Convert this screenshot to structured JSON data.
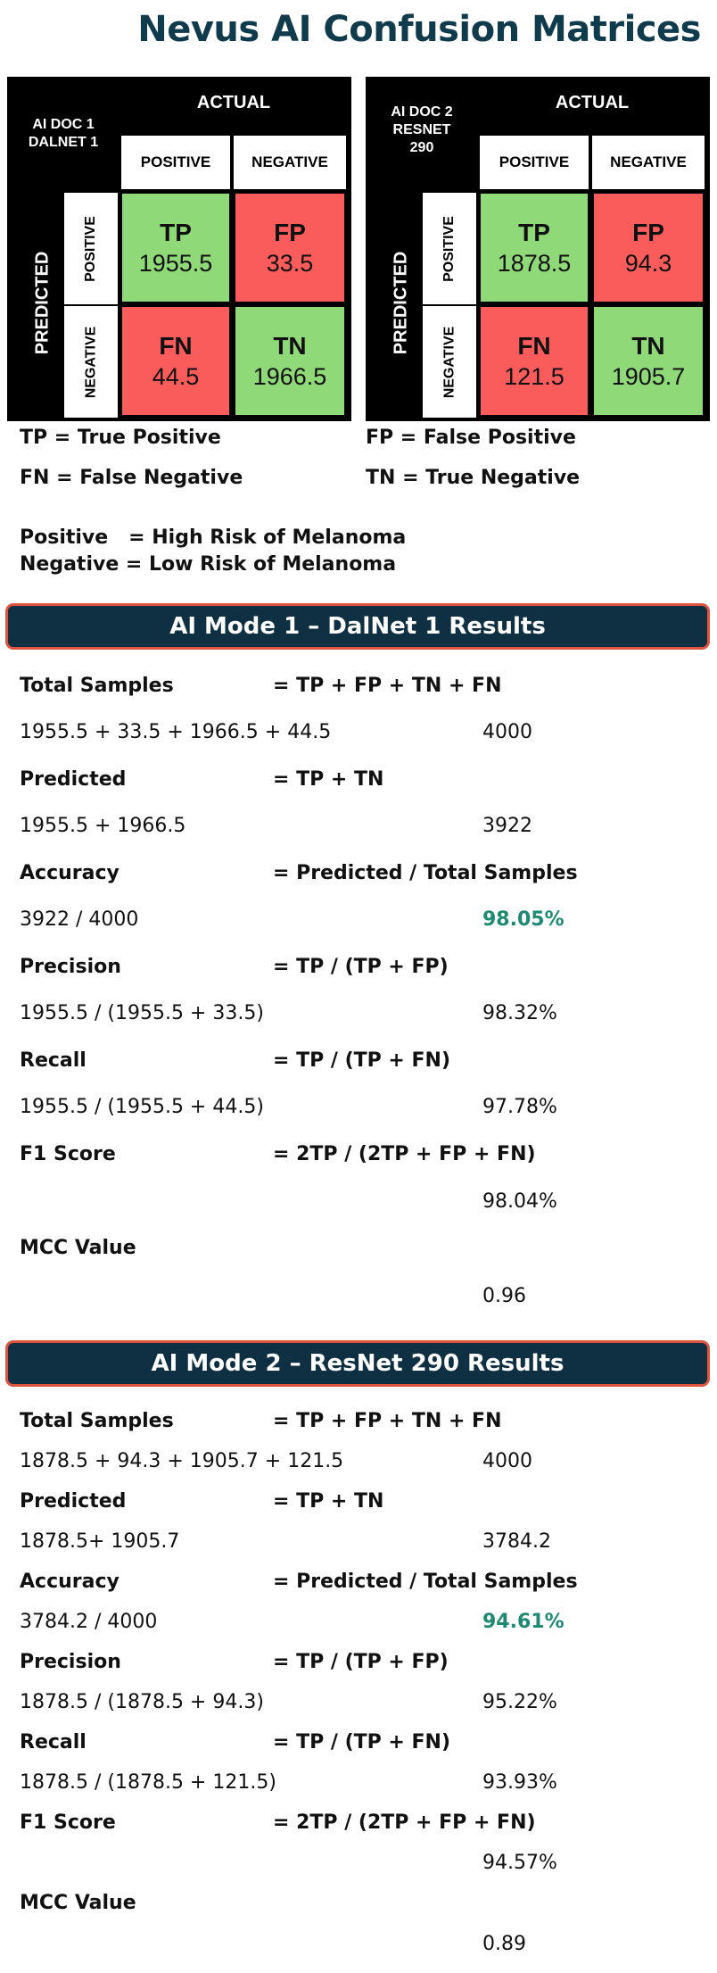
{
  "page_title": "Nevus AI Confusion Matrices",
  "matrices": [
    {
      "model_label_line1": "AI DOC 1",
      "model_label_line2": "DALNET 1",
      "model_label_line3": "",
      "actual": "ACTUAL",
      "predicted": "PREDICTED",
      "col_positive": "POSITIVE",
      "col_negative": "NEGATIVE",
      "row_positive": "POSITIVE",
      "row_negative": "NEGATIVE",
      "tp": {
        "abbr": "TP",
        "value": "1955.5"
      },
      "fp": {
        "abbr": "FP",
        "value": "33.5"
      },
      "fn": {
        "abbr": "FN",
        "value": "44.5"
      },
      "tn": {
        "abbr": "TN",
        "value": "1966.5"
      }
    },
    {
      "model_label_line1": "AI DOC 2",
      "model_label_line2": "RESNET",
      "model_label_line3": "290",
      "actual": "ACTUAL",
      "predicted": "PREDICTED",
      "col_positive": "POSITIVE",
      "col_negative": "NEGATIVE",
      "row_positive": "POSITIVE",
      "row_negative": "NEGATIVE",
      "tp": {
        "abbr": "TP",
        "value": "1878.5"
      },
      "fp": {
        "abbr": "FP",
        "value": "94.3"
      },
      "fn": {
        "abbr": "FN",
        "value": "121.5"
      },
      "tn": {
        "abbr": "TN",
        "value": "1905.7"
      }
    }
  ],
  "legend": {
    "tp": "TP = True Positive",
    "fp": "FP = False Positive",
    "fn": "FN = False Negative",
    "tn": "TN = True Negative",
    "positive": "Positive   = High Risk of Melanoma",
    "negative": "Negative = Low Risk of Melanoma"
  },
  "sections": [
    {
      "title": "AI Mode 1 – DalNet 1 Results",
      "metrics": [
        {
          "name": "Total Samples",
          "formula": "= TP + FP + TN + FN",
          "calc": "1955.5 + 33.5 + 1966.5 + 44.5",
          "result": "4000"
        },
        {
          "name": "Predicted",
          "formula": "= TP + TN",
          "calc": "1955.5 + 1966.5",
          "result": "3922"
        },
        {
          "name": "Accuracy",
          "formula": "= Predicted / Total Samples",
          "calc": "3922 / 4000",
          "result": "98.05%"
        },
        {
          "name": "Precision",
          "formula": "= TP / (TP + FP)",
          "calc": "1955.5 / (1955.5 + 33.5)",
          "result": "98.32%"
        },
        {
          "name": "Recall",
          "formula": "= TP / (TP + FN)",
          "calc": "1955.5 / (1955.5 + 44.5)",
          "result": "97.78%"
        },
        {
          "name": "F1 Score",
          "formula": "= 2TP / (2TP + FP + FN)",
          "calc": "",
          "result": "98.04%"
        },
        {
          "name": "MCC Value",
          "formula": "",
          "calc": "",
          "result": "0.96"
        }
      ]
    },
    {
      "title": "AI Mode 2 – ResNet 290 Results",
      "metrics": [
        {
          "name": "Total Samples",
          "formula": "= TP + FP + TN + FN",
          "calc": "1878.5 + 94.3 + 1905.7 + 121.5",
          "result": "4000"
        },
        {
          "name": "Predicted",
          "formula": "= TP + TN",
          "calc": "1878.5+ 1905.7",
          "result": "3784.2"
        },
        {
          "name": "Accuracy",
          "formula": "= Predicted / Total Samples",
          "calc": "3784.2 / 4000",
          "result": "94.61%"
        },
        {
          "name": "Precision",
          "formula": "= TP / (TP + FP)",
          "calc": "1878.5 / (1878.5 + 94.3)",
          "result": "95.22%"
        },
        {
          "name": "Recall",
          "formula": "= TP / (TP + FN)",
          "calc": "1878.5 / (1878.5 + 121.5)",
          "result": "93.93%"
        },
        {
          "name": "F1 Score",
          "formula": "= 2TP / (2TP + FP + FN)",
          "calc": "",
          "result": "94.57%"
        },
        {
          "name": "MCC Value",
          "formula": "",
          "calc": "",
          "result": "0.89"
        }
      ]
    }
  ],
  "colors": {
    "title": "#0f3b4c",
    "banner_bg": "#0f3043",
    "banner_border": "#e0533f",
    "cell_green": "#8fd978",
    "cell_red": "#fa5c5c",
    "accuracy_highlight": "#1f8a73"
  }
}
